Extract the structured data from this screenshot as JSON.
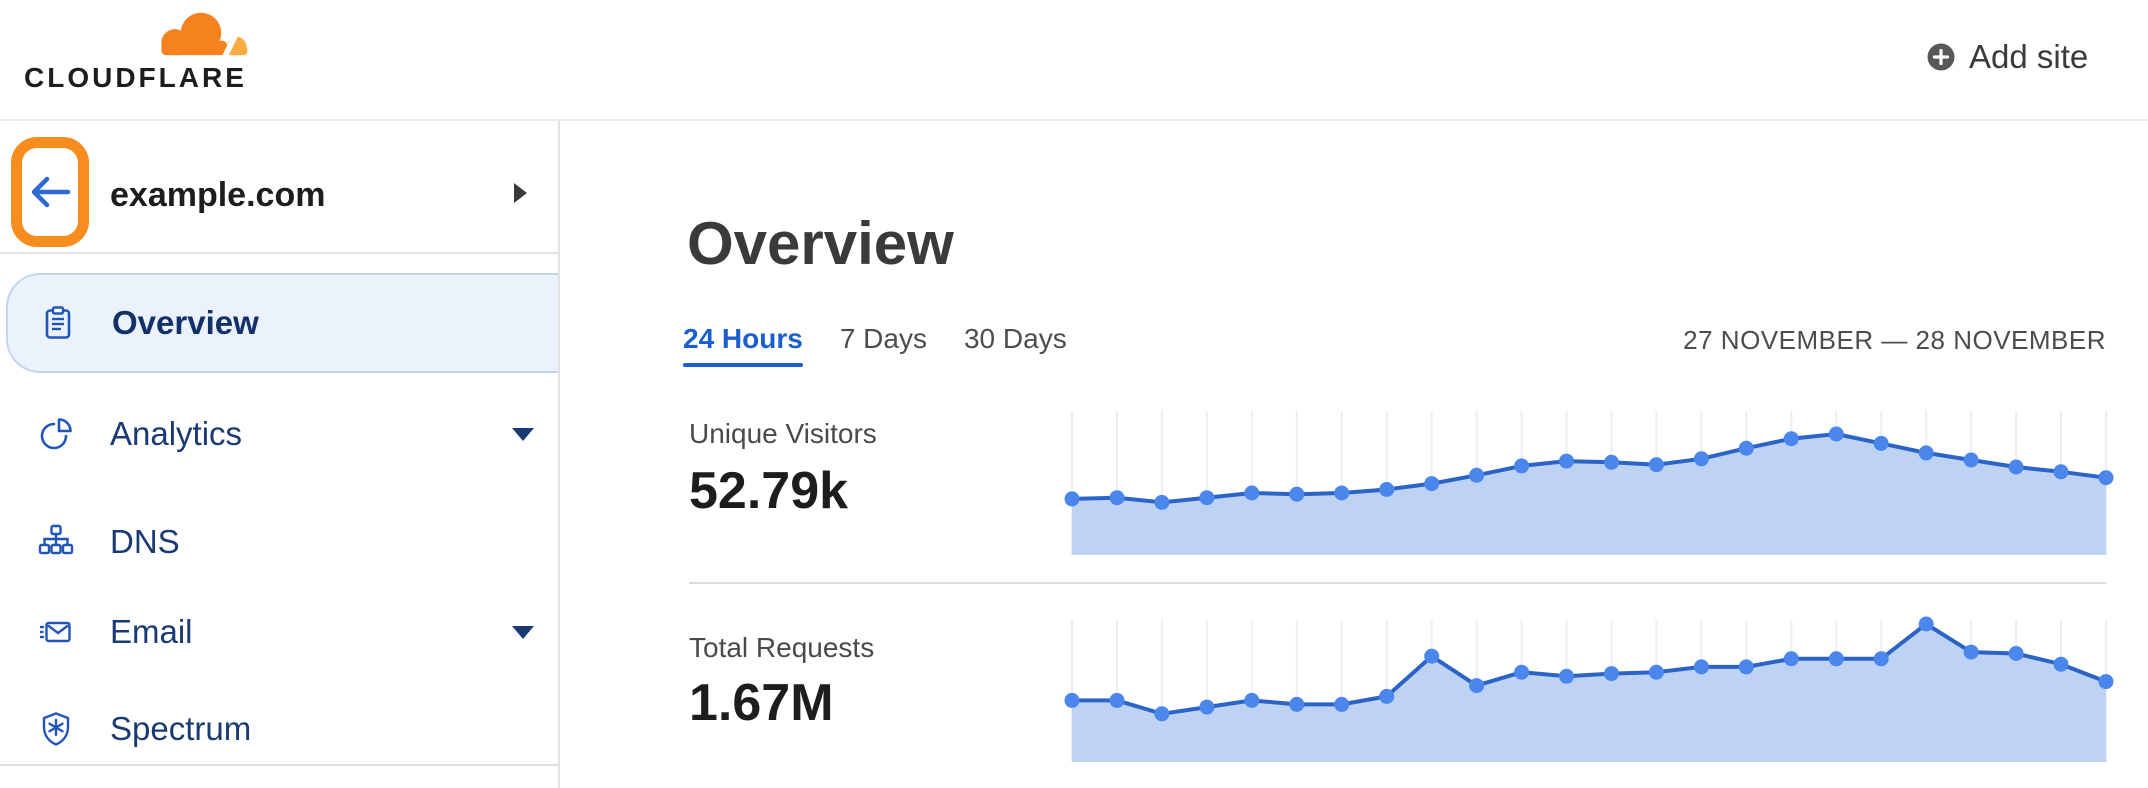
{
  "header": {
    "logo_text": "CLOUDFLARE",
    "add_site_label": "Add site"
  },
  "sidebar": {
    "site_name": "example.com",
    "items": [
      {
        "label": "Overview",
        "icon": "clipboard-icon",
        "selected": true,
        "has_caret": false
      },
      {
        "label": "Analytics",
        "icon": "pie-chart-icon",
        "selected": false,
        "has_caret": true
      },
      {
        "label": "DNS",
        "icon": "sitemap-icon",
        "selected": false,
        "has_caret": false
      },
      {
        "label": "Email",
        "icon": "email-icon",
        "selected": false,
        "has_caret": true
      },
      {
        "label": "Spectrum",
        "icon": "shield-icon",
        "selected": false,
        "has_caret": false
      }
    ],
    "back_button_highlighted": true
  },
  "main": {
    "title": "Overview",
    "tabs": [
      {
        "label": "24 Hours",
        "active": true
      },
      {
        "label": "7 Days",
        "active": false
      },
      {
        "label": "30 Days",
        "active": false
      }
    ],
    "date_range": "27 NOVEMBER — 28 NOVEMBER"
  },
  "chart_data": [
    {
      "type": "area",
      "title": "Unique Visitors",
      "total": "52.79k",
      "x": "hours (24-hour period, 24 points)",
      "ylabel": "",
      "grid": "vertical-only",
      "legend": "none",
      "values_normalized": [
        0.45,
        0.46,
        0.42,
        0.46,
        0.5,
        0.49,
        0.5,
        0.53,
        0.58,
        0.65,
        0.73,
        0.77,
        0.76,
        0.74,
        0.79,
        0.88,
        0.96,
        1.0,
        0.92,
        0.84,
        0.78,
        0.72,
        0.68,
        0.63
      ]
    },
    {
      "type": "area",
      "title": "Total Requests",
      "total": "1.67M",
      "x": "hours (24-hour period, 24 points)",
      "ylabel": "",
      "grid": "vertical-only",
      "legend": "none",
      "values_normalized": [
        0.43,
        0.43,
        0.33,
        0.38,
        0.43,
        0.4,
        0.4,
        0.46,
        0.76,
        0.54,
        0.64,
        0.61,
        0.63,
        0.64,
        0.68,
        0.68,
        0.74,
        0.74,
        0.74,
        1.0,
        0.79,
        0.78,
        0.7,
        0.57
      ]
    }
  ],
  "theme": {
    "brand_orange": "#F6821F",
    "brand_orange_light": "#FBAD41",
    "annotation_orange": "#F78D1E",
    "nav_text_blue": "#1A3A74",
    "icon_blue": "#2156B8",
    "link_blue": "#1A5FD0",
    "back_arrow_blue": "#2E6BD0",
    "selected_bg": "#ECF2FB",
    "selected_border": "#C2D5F1",
    "chart_fill": "#BED3F4",
    "chart_line": "#2B64C6",
    "chart_dot": "#4A86EC",
    "chart_gridline": "#ECEEF6",
    "divider_gray": "#DCDCDC",
    "add_icon_gray": "#585858",
    "text_dark": "#1D1D1D",
    "text_gray": "#4A4A4A"
  }
}
